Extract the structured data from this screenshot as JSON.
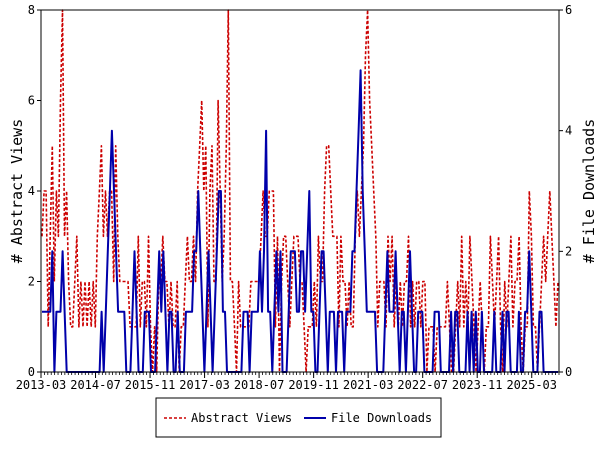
{
  "chart_data": {
    "type": "line",
    "xlabel": "",
    "ylabel_left": "# Abstract Views",
    "ylabel_right": "# File Downloads",
    "ylim_left": [
      0,
      8
    ],
    "ylim_right": [
      0,
      6
    ],
    "y_ticks_left": [
      "0",
      "2",
      "4",
      "6",
      "8"
    ],
    "y_ticks_right": [
      "0",
      "2",
      "4",
      "6"
    ],
    "x_tick_labels": [
      "2013-03",
      "2014-07",
      "2015-11",
      "2017-03",
      "2018-07",
      "2019-11",
      "2021-03",
      "2022-07",
      "2023-11",
      "2025-03"
    ],
    "x_start": "2013-03",
    "x_end": "2025-10",
    "legend_position": "bottom",
    "grid": false,
    "series": [
      {
        "name": "Abstract Views",
        "axis": "left",
        "color": "#cc0000",
        "style": "dashed",
        "values": [
          3,
          4,
          4,
          1,
          3,
          5,
          2,
          4,
          3,
          6,
          8,
          3,
          4,
          2,
          1,
          1,
          2,
          3,
          1,
          2,
          1,
          2,
          1,
          2,
          1,
          2,
          1,
          3,
          4,
          5,
          3,
          4,
          3,
          4,
          4,
          2,
          5,
          3,
          2,
          2,
          2,
          2,
          2,
          1,
          1,
          1,
          1,
          3,
          1,
          2,
          2,
          1,
          3,
          1,
          0,
          1,
          0,
          2,
          2,
          3,
          2,
          2,
          1,
          2,
          1,
          1,
          2,
          0,
          1,
          1,
          2,
          3,
          2,
          2,
          3,
          2,
          4,
          5,
          6,
          4,
          5,
          1,
          4,
          5,
          2,
          2,
          6,
          4,
          2,
          3,
          5,
          8,
          2,
          2,
          1,
          0,
          2,
          1,
          1,
          1,
          1,
          1,
          2,
          2,
          2,
          2,
          2,
          3,
          4,
          3,
          3,
          4,
          4,
          4,
          1,
          3,
          0,
          2,
          3,
          3,
          2,
          1,
          2,
          3,
          3,
          3,
          2,
          2,
          1,
          0,
          1,
          1,
          1,
          2,
          1,
          3,
          2,
          2,
          4,
          5,
          5,
          4,
          3,
          3,
          3,
          1,
          3,
          2,
          2,
          1,
          2,
          1,
          1,
          3,
          4,
          3,
          4,
          5,
          7,
          8,
          6,
          5,
          4,
          3,
          1,
          2,
          2,
          2,
          1,
          3,
          2,
          3,
          1,
          2,
          1,
          2,
          1,
          2,
          2,
          3,
          1,
          2,
          1,
          2,
          2,
          1,
          2,
          2,
          0,
          1,
          1,
          1,
          0,
          1,
          1,
          1,
          1,
          1,
          2,
          1,
          0,
          0,
          1,
          2,
          1,
          3,
          1,
          2,
          1,
          3,
          2,
          1,
          0,
          1,
          2,
          1,
          0,
          1,
          1,
          3,
          2,
          1,
          2,
          3,
          1,
          0,
          2,
          1,
          2,
          3,
          1,
          2,
          2,
          3,
          1,
          0,
          1,
          1,
          4,
          3,
          1,
          1,
          0,
          1,
          2,
          3,
          2,
          3,
          4,
          3,
          2,
          1,
          2
        ]
      },
      {
        "name": "File Downloads",
        "axis": "right",
        "color": "#0000aa",
        "style": "solid",
        "values": [
          1,
          1,
          1,
          1,
          1,
          2,
          0,
          1,
          1,
          1,
          2,
          1,
          0,
          0,
          0,
          0,
          0,
          0,
          0,
          0,
          0,
          0,
          0,
          0,
          0,
          0,
          0,
          0,
          0,
          1,
          0,
          1,
          2,
          3,
          4,
          3,
          2,
          1,
          1,
          1,
          1,
          0,
          0,
          0,
          1,
          2,
          1,
          0,
          0,
          0,
          1,
          1,
          1,
          0,
          0,
          0,
          1,
          2,
          1,
          2,
          1,
          0,
          1,
          1,
          0,
          0,
          1,
          0,
          0,
          0,
          1,
          1,
          1,
          1,
          2,
          2,
          3,
          2,
          1,
          0,
          1,
          2,
          1,
          0,
          1,
          2,
          3,
          3,
          1,
          1,
          0,
          0,
          0,
          0,
          0,
          0,
          0,
          0,
          1,
          1,
          1,
          0,
          1,
          1,
          1,
          1,
          2,
          1,
          2,
          4,
          1,
          1,
          0,
          1,
          2,
          1,
          2,
          0,
          0,
          0,
          1,
          2,
          2,
          2,
          1,
          1,
          2,
          2,
          1,
          2,
          3,
          1,
          1,
          0,
          0,
          1,
          2,
          2,
          1,
          0,
          1,
          1,
          1,
          0,
          1,
          1,
          1,
          0,
          1,
          1,
          1,
          2,
          2,
          3,
          4,
          5,
          3,
          2,
          1,
          1,
          1,
          1,
          1,
          0,
          0,
          0,
          0,
          1,
          2,
          1,
          1,
          1,
          2,
          1,
          0,
          1,
          1,
          0,
          1,
          2,
          1,
          0,
          0,
          1,
          1,
          1,
          0,
          0,
          0,
          0,
          0,
          1,
          1,
          1,
          0,
          0,
          0,
          0,
          0,
          1,
          0,
          1,
          1,
          0,
          0,
          0,
          0,
          1,
          0,
          1,
          0,
          1,
          0,
          0,
          1,
          0,
          0,
          0,
          0,
          0,
          1,
          0,
          0,
          0,
          1,
          0,
          1,
          1,
          0,
          0,
          0,
          0,
          1,
          0,
          0,
          1,
          1,
          2,
          1,
          0,
          0,
          0,
          1,
          1,
          0,
          0,
          0,
          0,
          0,
          0,
          0,
          0
        ]
      }
    ]
  }
}
